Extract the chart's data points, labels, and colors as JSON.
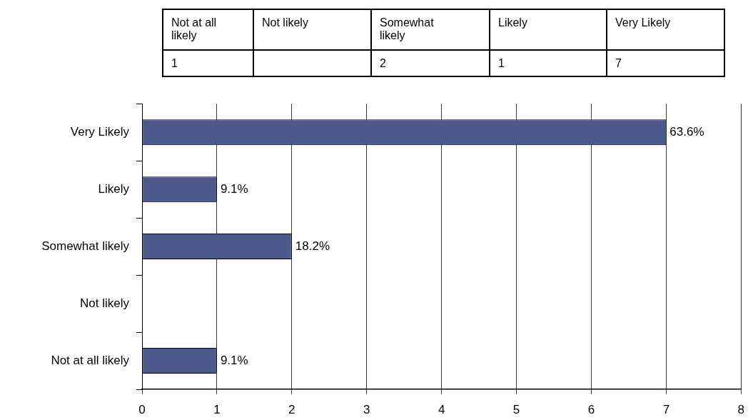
{
  "chart_data": [
    {
      "type": "other",
      "categories": [
        "Not at all likely",
        "Not likely",
        "Somewhat likely",
        "Likely",
        "Very Likely"
      ],
      "values": [
        1,
        null,
        2,
        1,
        7
      ],
      "data_labels": true
    },
    {
      "type": "bar",
      "orientation": "horizontal",
      "categories": [
        "Very Likely",
        "Likely",
        "Somewhat likely",
        "Not likely",
        "Not at all likely"
      ],
      "values": [
        7,
        1,
        2,
        null,
        1
      ],
      "color": "#4b5a8a",
      "annotations": [
        {
          "text": "63.6%",
          "x": 7,
          "y": "Very Likely"
        },
        {
          "text": "9.1%",
          "x": 1,
          "y": "Likely"
        },
        {
          "text": "18.2%",
          "x": 2,
          "y": "Somewhat likely"
        },
        {
          "text": "9.1%",
          "x": 1,
          "y": "Not at all likely"
        }
      ],
      "xlim": [
        0,
        8
      ],
      "xticks": [
        0,
        1,
        2,
        3,
        4,
        5,
        6,
        7,
        8
      ],
      "grid": "x",
      "legend": false
    }
  ]
}
